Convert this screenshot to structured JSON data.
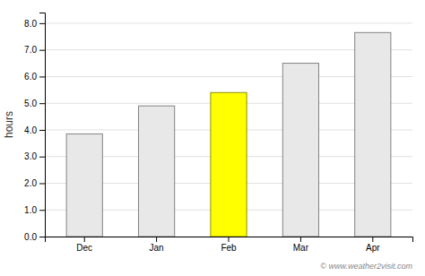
{
  "chart_data": {
    "type": "bar",
    "categories": [
      "Dec",
      "Jan",
      "Feb",
      "Mar",
      "Apr"
    ],
    "values": [
      3.85,
      4.9,
      5.4,
      6.5,
      7.65
    ],
    "colors": [
      "#e8e8e8",
      "#e8e8e8",
      "#ffff00",
      "#e8e8e8",
      "#e8e8e8"
    ],
    "ylabel": "hours",
    "ylim": [
      0,
      8.4
    ],
    "yticks": [
      {
        "value": 0.0,
        "label": "0.0"
      },
      {
        "value": 1.0,
        "label": "1.0"
      },
      {
        "value": 2.0,
        "label": "2.0"
      },
      {
        "value": 3.0,
        "label": "3.0"
      },
      {
        "value": 4.0,
        "label": "4.0"
      },
      {
        "value": 5.0,
        "label": "5.0"
      },
      {
        "value": 6.0,
        "label": "6.0"
      },
      {
        "value": 7.0,
        "label": "7.0"
      },
      {
        "value": 8.0,
        "label": "8.0"
      }
    ],
    "annotation": "© www.weather2visit.com",
    "grid": true
  }
}
